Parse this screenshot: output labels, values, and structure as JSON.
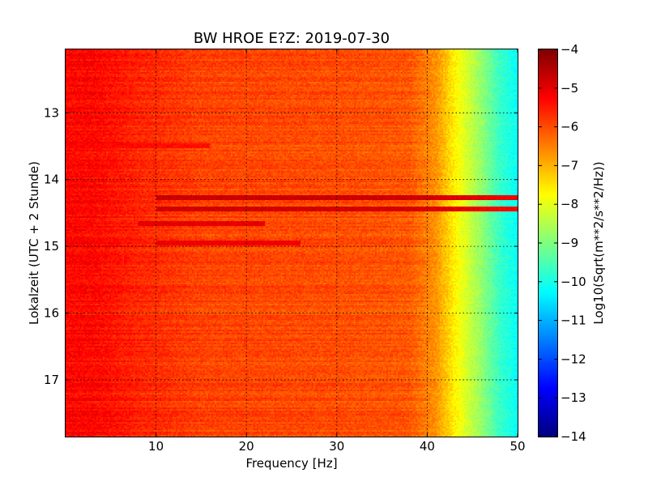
{
  "chart_data": {
    "type": "heatmap",
    "title": "BW HROE E?Z: 2019-07-30",
    "xlabel": "Frequency [Hz]",
    "ylabel": "Lokalzeit (UTC + 2 Stunde)",
    "xlim": [
      0,
      50
    ],
    "ylim": [
      12.05,
      17.85
    ],
    "y_inverted": true,
    "x_ticks": [
      10,
      20,
      30,
      40,
      50
    ],
    "y_ticks": [
      13,
      14,
      15,
      16,
      17
    ],
    "grid": true,
    "colormap": "jet",
    "colorbar": {
      "label": "Log10(Sqrt(m**2/s**2/Hz))",
      "range": [
        -14,
        -4
      ],
      "ticks": [
        -4,
        -5,
        -6,
        -7,
        -8,
        -9,
        -10,
        -11,
        -12,
        -13,
        -14
      ]
    },
    "spectrum_profile": [
      {
        "freq": 0,
        "value": -5.3
      },
      {
        "freq": 3,
        "value": -5.3
      },
      {
        "freq": 8,
        "value": -5.6
      },
      {
        "freq": 15,
        "value": -5.9
      },
      {
        "freq": 30,
        "value": -6.0
      },
      {
        "freq": 38,
        "value": -6.1
      },
      {
        "freq": 41,
        "value": -6.7
      },
      {
        "freq": 43,
        "value": -7.6
      },
      {
        "freq": 46,
        "value": -8.8
      },
      {
        "freq": 48,
        "value": -9.7
      },
      {
        "freq": 50,
        "value": -10.2
      }
    ],
    "bands": [
      {
        "time": 13.5,
        "f_start": 0,
        "f_end": 16,
        "value": -5.3
      },
      {
        "time": 14.28,
        "f_start": 10,
        "f_end": 50,
        "value": -4.6
      },
      {
        "time": 14.45,
        "f_start": 10,
        "f_end": 50,
        "value": -4.7
      },
      {
        "time": 14.65,
        "f_start": 8,
        "f_end": 22,
        "value": -4.9
      },
      {
        "time": 14.95,
        "f_start": 10,
        "f_end": 26,
        "value": -5.0
      }
    ],
    "colors": {
      "cmap_stops": [
        "#00007f",
        "#0000ff",
        "#007fff",
        "#00ffff",
        "#7fff7f",
        "#ffff00",
        "#ff7f00",
        "#ff0000",
        "#7f0000"
      ]
    }
  }
}
